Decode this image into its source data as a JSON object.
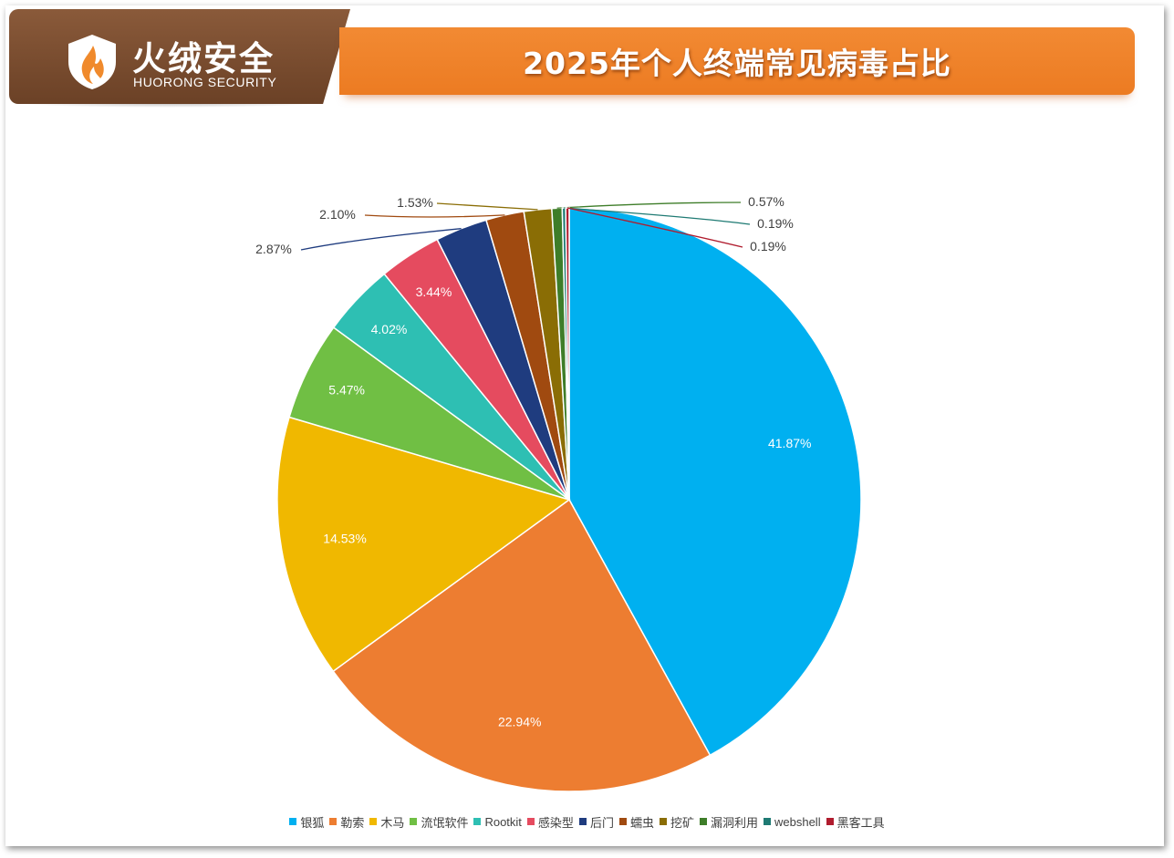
{
  "brand": {
    "name": "火绒安全",
    "subtitle": "HUORONG SECURITY",
    "colors": {
      "banner": "#7a4c30",
      "accent": "#ef8229"
    }
  },
  "chart_data": {
    "type": "pie",
    "title": "2025年个人终端常见病毒占比",
    "start_angle_deg": 0,
    "direction": "clockwise",
    "legend_position": "bottom",
    "slices": [
      {
        "name": "银狐",
        "value": 41.87,
        "label": "41.87%",
        "color": "#00b0f0"
      },
      {
        "name": "勒索",
        "value": 22.94,
        "label": "22.94%",
        "color": "#ed7d31"
      },
      {
        "name": "木马",
        "value": 14.53,
        "label": "14.53%",
        "color": "#f0b800"
      },
      {
        "name": "流氓软件",
        "value": 5.47,
        "label": "5.47%",
        "color": "#70bf44"
      },
      {
        "name": "Rootkit",
        "value": 4.02,
        "label": "4.02%",
        "color": "#2ebfb3"
      },
      {
        "name": "感染型",
        "value": 3.44,
        "label": "3.44%",
        "color": "#e54b5f"
      },
      {
        "name": "后门",
        "value": 2.87,
        "label": "2.87%",
        "color": "#1f3c7f"
      },
      {
        "name": "蠕虫",
        "value": 2.1,
        "label": "2.10%",
        "color": "#a04a10"
      },
      {
        "name": "挖矿",
        "value": 1.53,
        "label": "1.53%",
        "color": "#8a6d05"
      },
      {
        "name": "漏洞利用",
        "value": 0.57,
        "label": "0.57%",
        "color": "#3e7d29"
      },
      {
        "name": "webshell",
        "value": 0.19,
        "label": "0.19%",
        "color": "#1e7a73"
      },
      {
        "name": "黑客工具",
        "value": 0.19,
        "label": "0.19%",
        "color": "#b01c2e"
      }
    ]
  }
}
